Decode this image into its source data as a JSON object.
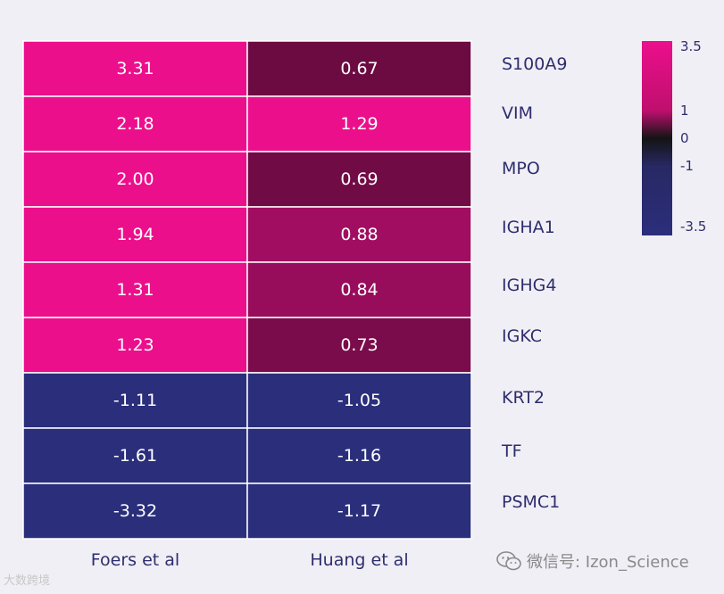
{
  "chart_data": {
    "type": "heatmap",
    "columns": [
      "Foers et al",
      "Huang et al"
    ],
    "rows": [
      "S100A9",
      "VIM",
      "MPO",
      "IGHA1",
      "IGHG4",
      "IGKC",
      "KRT2",
      "TF",
      "PSMC1"
    ],
    "values": [
      [
        3.31,
        0.67
      ],
      [
        2.18,
        1.29
      ],
      [
        2.0,
        0.69
      ],
      [
        1.94,
        0.88
      ],
      [
        1.31,
        0.84
      ],
      [
        1.23,
        0.73
      ],
      [
        -1.11,
        -1.05
      ],
      [
        -1.61,
        -1.16
      ],
      [
        -3.32,
        -1.17
      ]
    ],
    "value_labels": [
      [
        "3.31",
        "0.67"
      ],
      [
        "2.18",
        "1.29"
      ],
      [
        "2.00",
        "0.69"
      ],
      [
        "1.94",
        "0.88"
      ],
      [
        "1.31",
        "0.84"
      ],
      [
        "1.23",
        "0.73"
      ],
      [
        "-1.11",
        "-1.05"
      ],
      [
        "-1.61",
        "-1.16"
      ],
      [
        "-3.32",
        "-1.17"
      ]
    ],
    "colorbar": {
      "range": [
        -3.5,
        3.5
      ],
      "ticks": [
        "3.5",
        "1",
        "0",
        "-1",
        "-3.5"
      ],
      "tick_values": [
        3.5,
        1,
        0,
        -1,
        -3.5
      ],
      "colors": {
        "max": "#ec0f8c",
        "mid_high": "#bf0f6e",
        "zero": "#141414",
        "mid_low": "#282863",
        "min": "#2b2e7b"
      }
    },
    "colors": {
      "cell_border": "#ffffff",
      "text": "#2e2e6e"
    }
  },
  "watermarks": {
    "wechat": "微信号: Izon_Science",
    "logo": "大数跨境"
  }
}
